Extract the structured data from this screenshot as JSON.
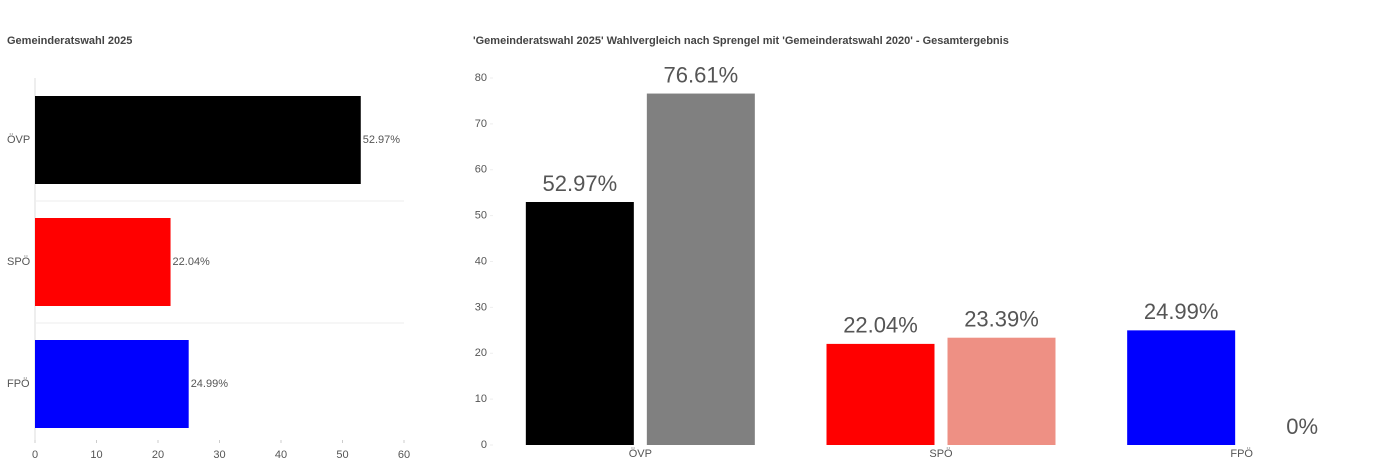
{
  "chart_data": [
    {
      "type": "bar",
      "horizontal": true,
      "title": "Gemeinderatswahl 2025",
      "categories": [
        "ÖVP",
        "SPÖ",
        "FPÖ"
      ],
      "values": [
        52.97,
        22.04,
        24.99
      ],
      "value_labels": [
        "52.97%",
        "22.04%",
        "24.99%"
      ],
      "colors": [
        "#000000",
        "#ff0000",
        "#0000ff"
      ],
      "xlim": [
        0,
        60
      ],
      "xticks": [
        0,
        10,
        20,
        30,
        40,
        50,
        60
      ]
    },
    {
      "type": "bar",
      "horizontal": false,
      "title": "'Gemeinderatswahl 2025' Wahlvergleich nach Sprengel mit 'Gemeinderatswahl 2020' - Gesamtergebnis",
      "categories": [
        "ÖVP",
        "SPÖ",
        "FPÖ"
      ],
      "series": [
        {
          "colors": [
            "#000000",
            "#ff0000",
            "#0000ff"
          ],
          "values": [
            52.97,
            22.04,
            24.99
          ],
          "value_labels": [
            "52.97%",
            "22.04%",
            "24.99%"
          ]
        },
        {
          "colors": [
            "#808080",
            "#ee9084",
            "#b3b3ff"
          ],
          "values": [
            76.61,
            23.39,
            0
          ],
          "value_labels": [
            "76.61%",
            "23.39%",
            "0%"
          ]
        }
      ],
      "ylim": [
        0,
        80
      ],
      "yticks": [
        0,
        10,
        20,
        30,
        40,
        50,
        60,
        70,
        80
      ]
    }
  ]
}
